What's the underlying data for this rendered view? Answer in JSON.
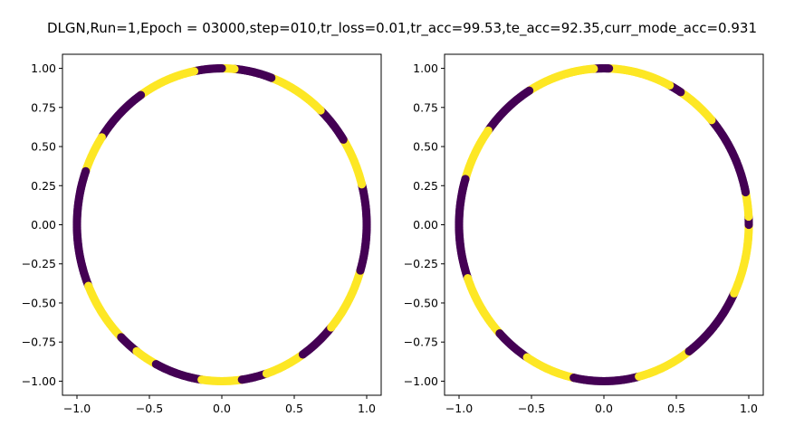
{
  "figure": {
    "suptitle": "DLGN,Run=1,Epoch = 03000,step=010,tr_loss=0.01,tr_acc=99.53,te_acc=92.35,curr_mode_acc=0.931"
  },
  "colors": {
    "class_0": "#440154",
    "class_1": "#fde725"
  },
  "chart_data": [
    {
      "type": "scatter",
      "title": "",
      "xlabel": "",
      "ylabel": "",
      "xlim": [
        -1.1,
        1.1
      ],
      "ylim": [
        -1.09,
        1.09
      ],
      "xticks": [
        -1.0,
        -0.5,
        0.0,
        0.5,
        1.0
      ],
      "xtick_labels": [
        "−1.0",
        "−0.5",
        "0.0",
        "0.5",
        "1.0"
      ],
      "yticks": [
        -1.0,
        -0.75,
        -0.5,
        -0.25,
        0.0,
        0.25,
        0.5,
        0.75,
        1.0
      ],
      "ytick_labels": [
        "−1.00",
        "−0.75",
        "−0.50",
        "−0.25",
        "0.00",
        "0.25",
        "0.50",
        "0.75",
        "1.00"
      ],
      "grid": false,
      "points_description_unit": "angle_degrees_on_unit_circle",
      "arcs": [
        {
          "class": 0,
          "from": -8,
          "to": 15
        },
        {
          "class": 1,
          "from": 15,
          "to": 33
        },
        {
          "class": 0,
          "from": 33,
          "to": 47
        },
        {
          "class": 1,
          "from": 47,
          "to": 70
        },
        {
          "class": 0,
          "from": 70,
          "to": 85
        },
        {
          "class": 1,
          "from": 85,
          "to": 90
        },
        {
          "class": 0,
          "from": 90,
          "to": 101
        },
        {
          "class": 1,
          "from": 101,
          "to": 124
        },
        {
          "class": 0,
          "from": 124,
          "to": 146
        },
        {
          "class": 1,
          "from": 146,
          "to": 160
        },
        {
          "class": 0,
          "from": 160,
          "to": 203
        },
        {
          "class": 1,
          "from": 203,
          "to": 226
        },
        {
          "class": 0,
          "from": 226,
          "to": 234
        },
        {
          "class": 1,
          "from": 234,
          "to": 243
        },
        {
          "class": 0,
          "from": 243,
          "to": 262
        },
        {
          "class": 1,
          "from": 262,
          "to": 278
        },
        {
          "class": 0,
          "from": 278,
          "to": 288
        },
        {
          "class": 1,
          "from": 288,
          "to": 304
        },
        {
          "class": 0,
          "from": 304,
          "to": 319
        },
        {
          "class": 1,
          "from": 319,
          "to": 343
        },
        {
          "class": 0,
          "from": 343,
          "to": 352
        }
      ]
    },
    {
      "type": "scatter",
      "title": "",
      "xlabel": "",
      "ylabel": "",
      "xlim": [
        -1.1,
        1.1
      ],
      "ylim": [
        -1.09,
        1.09
      ],
      "xticks": [
        -1.0,
        -0.5,
        0.0,
        0.5,
        1.0
      ],
      "xtick_labels": [
        "−1.0",
        "−0.5",
        "0.0",
        "0.5",
        "1.0"
      ],
      "yticks": [
        -1.0,
        -0.75,
        -0.5,
        -0.25,
        0.0,
        0.25,
        0.5,
        0.75,
        1.0
      ],
      "ytick_labels": [
        "−1.00",
        "−0.75",
        "−0.50",
        "−0.25",
        "0.00",
        "0.25",
        "0.50",
        "0.75",
        "1.00"
      ],
      "grid": false,
      "points_description_unit": "angle_degrees_on_unit_circle",
      "arcs": [
        {
          "class": 1,
          "from": -12,
          "to": 0
        },
        {
          "class": 0,
          "from": 0,
          "to": 3
        },
        {
          "class": 1,
          "from": 3,
          "to": 12
        },
        {
          "class": 0,
          "from": 12,
          "to": 42
        },
        {
          "class": 1,
          "from": 42,
          "to": 58
        },
        {
          "class": 0,
          "from": 58,
          "to": 63
        },
        {
          "class": 1,
          "from": 63,
          "to": 88
        },
        {
          "class": 0,
          "from": 88,
          "to": 94
        },
        {
          "class": 1,
          "from": 94,
          "to": 121
        },
        {
          "class": 0,
          "from": 121,
          "to": 143
        },
        {
          "class": 1,
          "from": 143,
          "to": 163
        },
        {
          "class": 0,
          "from": 163,
          "to": 200
        },
        {
          "class": 1,
          "from": 200,
          "to": 224
        },
        {
          "class": 0,
          "from": 224,
          "to": 238
        },
        {
          "class": 1,
          "from": 238,
          "to": 258
        },
        {
          "class": 0,
          "from": 258,
          "to": 284
        },
        {
          "class": 1,
          "from": 284,
          "to": 306
        },
        {
          "class": 0,
          "from": 306,
          "to": 334
        },
        {
          "class": 1,
          "from": 334,
          "to": 348
        }
      ]
    }
  ]
}
